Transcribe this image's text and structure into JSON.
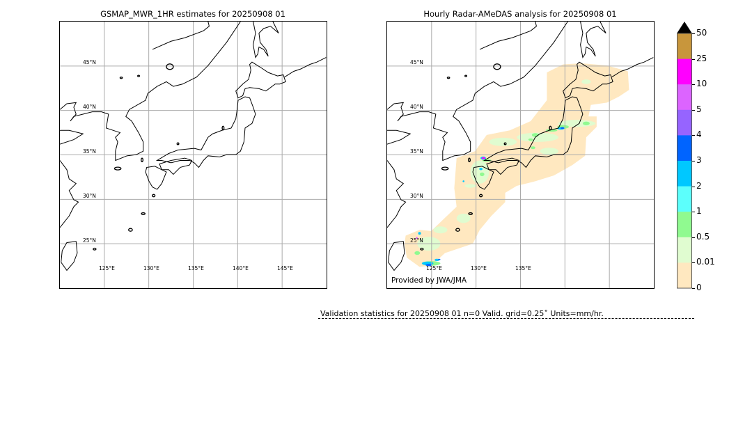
{
  "left_panel": {
    "title": "GSMAP_MWR_1HR estimates for 20250908 01",
    "lat_labels": [
      "45°N",
      "40°N",
      "35°N",
      "30°N",
      "25°N"
    ],
    "lon_labels": [
      "125°E",
      "130°E",
      "135°E",
      "140°E",
      "145°E"
    ]
  },
  "right_panel": {
    "title": "Hourly Radar-AMeDAS analysis for 20250908 01",
    "lat_labels": [
      "45°N",
      "40°N",
      "35°N",
      "30°N",
      "25°N"
    ],
    "lon_labels": [
      "125°E",
      "130°E",
      "135°E"
    ],
    "credit": "Provided by JWA/JMA"
  },
  "colorbar": {
    "ticks": [
      "50",
      "25",
      "10",
      "5",
      "4",
      "3",
      "2",
      "1",
      "0.5",
      "0.01",
      "0"
    ],
    "colors": [
      "#c8963c",
      "#ff00ff",
      "#dc64ff",
      "#9664ff",
      "#0064ff",
      "#00c8ff",
      "#5cfffc",
      "#90fa90",
      "#e0fcd0",
      "#ffe8c0"
    ],
    "extend_color": "#000000"
  },
  "footer": {
    "stats": "Validation statistics for 20250908 01  n=0 Valid. grid=0.25˚ Units=mm/hr."
  }
}
